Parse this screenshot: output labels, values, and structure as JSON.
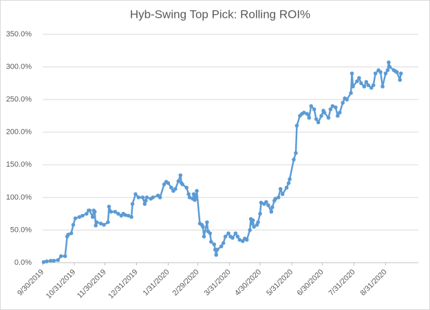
{
  "chart_data": {
    "type": "line",
    "title": "Hyb-Swing Top Pick: Rolling ROI%",
    "color": "#5b9bd5",
    "grid": true,
    "x": [
      "2019-10-01",
      "2019-10-04",
      "2019-10-08",
      "2019-10-11",
      "2019-10-15",
      "2019-10-18",
      "2019-10-22",
      "2019-10-24",
      "2019-10-25",
      "2019-10-28",
      "2019-10-30",
      "2019-11-01",
      "2019-11-05",
      "2019-11-08",
      "2019-11-12",
      "2019-11-14",
      "2019-11-15",
      "2019-11-18",
      "2019-11-19",
      "2019-11-20",
      "2019-11-21",
      "2019-11-22",
      "2019-11-26",
      "2019-11-29",
      "2019-12-03",
      "2019-12-04",
      "2019-12-06",
      "2019-12-10",
      "2019-12-13",
      "2019-12-16",
      "2019-12-18",
      "2019-12-20",
      "2019-12-23",
      "2019-12-26",
      "2019-12-27",
      "2019-12-30",
      "2020-01-02",
      "2020-01-06",
      "2020-01-08",
      "2020-01-09",
      "2020-01-10",
      "2020-01-14",
      "2020-01-16",
      "2020-01-21",
      "2020-01-23",
      "2020-01-27",
      "2020-01-29",
      "2020-01-31",
      "2020-02-03",
      "2020-02-05",
      "2020-02-07",
      "2020-02-10",
      "2020-02-12",
      "2020-02-13",
      "2020-02-14",
      "2020-02-18",
      "2020-02-20",
      "2020-02-21",
      "2020-02-24",
      "2020-02-25",
      "2020-02-26",
      "2020-02-27",
      "2020-02-28",
      "2020-03-02",
      "2020-03-04",
      "2020-03-05",
      "2020-03-06",
      "2020-03-09",
      "2020-03-10",
      "2020-03-12",
      "2020-03-13",
      "2020-03-16",
      "2020-03-17",
      "2020-03-18",
      "2020-03-19",
      "2020-03-23",
      "2020-03-25",
      "2020-03-27",
      "2020-03-30",
      "2020-04-01",
      "2020-04-03",
      "2020-04-06",
      "2020-04-08",
      "2020-04-10",
      "2020-04-13",
      "2020-04-15",
      "2020-04-17",
      "2020-04-20",
      "2020-04-21",
      "2020-04-22",
      "2020-04-23",
      "2020-04-24",
      "2020-04-27",
      "2020-04-28",
      "2020-04-30",
      "2020-05-01",
      "2020-05-04",
      "2020-05-06",
      "2020-05-08",
      "2020-05-11",
      "2020-05-12",
      "2020-05-14",
      "2020-05-15",
      "2020-05-18",
      "2020-05-20",
      "2020-05-22",
      "2020-05-26",
      "2020-05-28",
      "2020-05-29",
      "2020-06-02",
      "2020-06-04",
      "2020-06-05",
      "2020-06-08",
      "2020-06-10",
      "2020-06-12",
      "2020-06-15",
      "2020-06-17",
      "2020-06-19",
      "2020-06-22",
      "2020-06-24",
      "2020-06-26",
      "2020-06-29",
      "2020-07-01",
      "2020-07-02",
      "2020-07-06",
      "2020-07-08",
      "2020-07-10",
      "2020-07-13",
      "2020-07-15",
      "2020-07-17",
      "2020-07-20",
      "2020-07-22",
      "2020-07-24",
      "2020-07-28",
      "2020-07-29",
      "2020-07-30",
      "2020-08-03",
      "2020-08-05",
      "2020-08-07",
      "2020-08-10",
      "2020-08-12",
      "2020-08-14",
      "2020-08-17",
      "2020-08-19",
      "2020-08-21",
      "2020-08-24",
      "2020-08-26",
      "2020-08-28",
      "2020-08-31",
      "2020-09-02",
      "2020-09-03",
      "2020-09-04",
      "2020-09-08",
      "2020-09-10",
      "2020-09-11",
      "2020-09-14",
      "2020-09-15"
    ],
    "values": [
      1,
      2,
      3,
      3,
      4,
      10,
      10,
      40,
      43,
      45,
      58,
      68,
      70,
      72,
      75,
      80,
      80,
      70,
      80,
      78,
      57,
      62,
      60,
      58,
      62,
      86,
      78,
      78,
      75,
      72,
      75,
      73,
      72,
      70,
      90,
      105,
      100,
      100,
      90,
      95,
      100,
      98,
      100,
      103,
      100,
      120,
      124,
      122,
      115,
      110,
      113,
      125,
      134,
      122,
      120,
      115,
      105,
      100,
      98,
      105,
      96,
      100,
      110,
      60,
      58,
      55,
      40,
      62,
      48,
      45,
      32,
      28,
      20,
      12,
      20,
      25,
      30,
      40,
      45,
      40,
      38,
      45,
      40,
      35,
      33,
      37,
      35,
      50,
      67,
      60,
      65,
      55,
      58,
      62,
      75,
      92,
      90,
      93,
      88,
      78,
      85,
      95,
      98,
      100,
      113,
      105,
      115,
      122,
      128,
      158,
      168,
      210,
      225,
      228,
      230,
      228,
      222,
      240,
      235,
      220,
      215,
      225,
      233,
      230,
      222,
      235,
      240,
      238,
      225,
      230,
      245,
      252,
      250,
      260,
      290,
      270,
      278,
      283,
      275,
      270,
      277,
      272,
      268,
      272,
      290,
      295,
      292,
      270,
      290,
      295,
      307,
      300,
      295,
      293,
      292,
      280,
      290
    ],
    "xlim": [
      "2019-09-30",
      "2020-10-02"
    ],
    "xticks": [
      {
        "value": "2019-09-30",
        "label": "9/30/2019"
      },
      {
        "value": "2019-10-31",
        "label": "10/31/2019"
      },
      {
        "value": "2019-11-30",
        "label": "11/30/2019"
      },
      {
        "value": "2019-12-31",
        "label": "12/31/2019"
      },
      {
        "value": "2020-01-31",
        "label": "1/31/2020"
      },
      {
        "value": "2020-02-29",
        "label": "2/29/2020"
      },
      {
        "value": "2020-03-31",
        "label": "3/31/2020"
      },
      {
        "value": "2020-04-30",
        "label": "4/30/2020"
      },
      {
        "value": "2020-05-31",
        "label": "5/31/2020"
      },
      {
        "value": "2020-06-30",
        "label": "6/30/2020"
      },
      {
        "value": "2020-07-31",
        "label": "7/31/2020"
      },
      {
        "value": "2020-08-31",
        "label": "8/31/2020"
      }
    ],
    "ylim": [
      0,
      350
    ],
    "yticks": [
      {
        "value": 0,
        "label": "0.0%"
      },
      {
        "value": 50,
        "label": "50.0%"
      },
      {
        "value": 100,
        "label": "100.0%"
      },
      {
        "value": 150,
        "label": "150.0%"
      },
      {
        "value": 200,
        "label": "200.0%"
      },
      {
        "value": 250,
        "label": "250.0%"
      },
      {
        "value": 300,
        "label": "300.0%"
      },
      {
        "value": 350,
        "label": "350.0%"
      }
    ]
  }
}
